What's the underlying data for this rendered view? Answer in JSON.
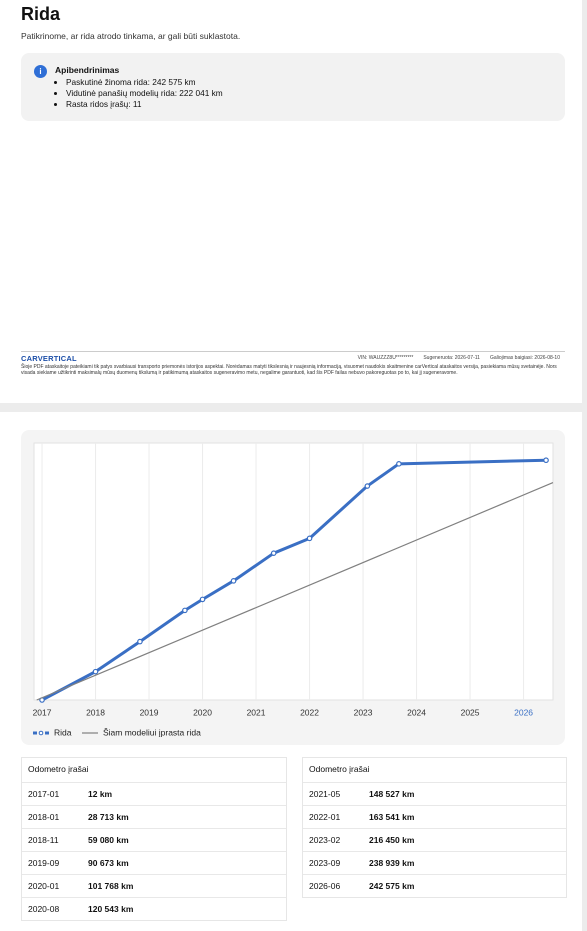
{
  "header": {
    "title": "Rida",
    "subtitle": "Patikrinome, ar rida atrodo tinkama, ar gali būti suklastota."
  },
  "summary": {
    "title": "Apibendrinimas",
    "items": [
      "Paskutinė žinoma rida: 242 575 km",
      "Vidutinė panašių modelių rida: 222 041 km",
      "Rasta ridos įrašų: 11"
    ]
  },
  "footer": {
    "brand": "CARVERTICAL",
    "vin": "VIN: WAUZZZ8U*********",
    "generated": "Sugeneruota: 2026-07-11",
    "expires": "Galiojimas baigiasi: 2026-08-10",
    "disclaimer": "Šioje PDF ataskaitoje pateikiami tik patys svarbiausi transporto priemonės istorijos aspektai. Norėdamas matyti tikslesnią ir naujesnią informaciją, visuomet naudokis skaitmenine carVertical ataskaitos versija, pasiekiama mūsų svetainėje. Nors visada siekiame užtikrinti maksimalų mūsų duomenų tikslumą ir patikimumą ataskaitos sugeneravimo metu, negalime garantuoti, kad šis PDF failas nebuvo pakoreguotas po to, kai jį sugeneravome."
  },
  "chart_data": {
    "type": "line",
    "xlim": [
      2016.85,
      2026.55
    ],
    "ylim": [
      0,
      260000
    ],
    "xticks": [
      2017,
      2018,
      2019,
      2020,
      2021,
      2022,
      2023,
      2024,
      2025,
      2026
    ],
    "grid": true,
    "series": [
      {
        "name": "Rida",
        "color": "#3a6fc4",
        "x": [
          2017.0,
          2018.0,
          2018.83,
          2019.67,
          2020.0,
          2020.58,
          2021.33,
          2022.0,
          2023.08,
          2023.67,
          2026.42
        ],
        "values": [
          12,
          28713,
          59080,
          90673,
          101768,
          120543,
          148527,
          163541,
          216450,
          238939,
          242575
        ]
      },
      {
        "name": "Šiam modeliui įprasta rida",
        "color": "#808080",
        "x": [
          2016.9,
          2026.55
        ],
        "values": [
          0,
          220000
        ]
      }
    ]
  },
  "tables": [
    {
      "title": "Odometro įrašai",
      "rows": [
        [
          "2017-01",
          "12 km"
        ],
        [
          "2018-01",
          "28 713 km"
        ],
        [
          "2018-11",
          "59 080 km"
        ],
        [
          "2019-09",
          "90 673 km"
        ],
        [
          "2020-01",
          "101 768 km"
        ],
        [
          "2020-08",
          "120 543 km"
        ]
      ]
    },
    {
      "title": "Odometro įrašai",
      "rows": [
        [
          "2021-05",
          "148 527 km"
        ],
        [
          "2022-01",
          "163 541 km"
        ],
        [
          "2023-02",
          "216 450 km"
        ],
        [
          "2023-09",
          "238 939 km"
        ],
        [
          "2026-06",
          "242 575 km"
        ]
      ]
    }
  ]
}
